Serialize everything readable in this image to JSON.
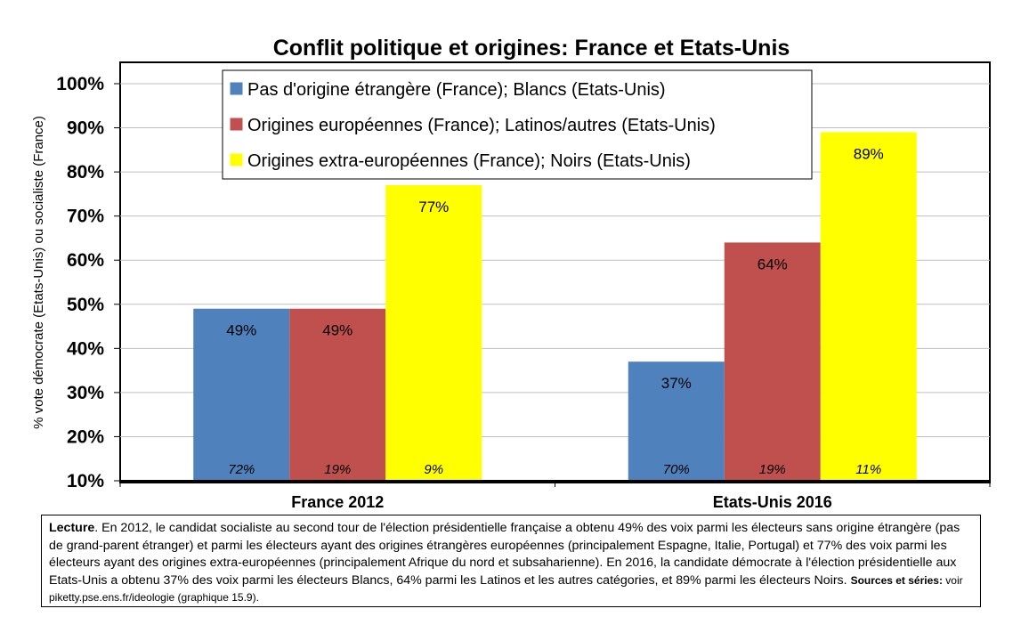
{
  "chart_data": {
    "type": "bar",
    "title": "Conflit politique et origines: France et Etats-Unis",
    "ylabel": "% vote démocrate (Etats-Unis) ou socialiste (France)",
    "xlabel": "",
    "ylim": [
      0.1,
      1.0
    ],
    "yticks": [
      "10%",
      "20%",
      "30%",
      "40%",
      "50%",
      "60%",
      "70%",
      "80%",
      "90%",
      "100%"
    ],
    "categories": [
      "France 2012",
      "Etats-Unis 2016"
    ],
    "series": [
      {
        "name": "Pas d'origine étrangère (France); Blancs (Etats-Unis)",
        "color": "#4f81bd",
        "values": [
          0.49,
          0.37
        ],
        "labels": [
          "49%",
          "37%"
        ],
        "shares": [
          "72%",
          "70%"
        ]
      },
      {
        "name": "Origines européennes (France); Latinos/autres (Etats-Unis)",
        "color": "#c0504d",
        "values": [
          0.49,
          0.64
        ],
        "labels": [
          "49%",
          "64%"
        ],
        "shares": [
          "19%",
          "19%"
        ]
      },
      {
        "name": "Origines extra-européennes (France); Noirs (Etats-Unis)",
        "color": "#ffff00",
        "values": [
          0.77,
          0.89
        ],
        "labels": [
          "77%",
          "89%"
        ],
        "shares": [
          "9%",
          "11%"
        ]
      }
    ],
    "grid": true,
    "legend_position": "top"
  },
  "note": {
    "label": "Lecture",
    "text": ". En 2012, le candidat socialiste au second tour de l'élection présidentielle française a obtenu 49% des voix parmi les électeurs sans origine étrangère (pas de grand-parent étranger) et parmi les électeurs ayant des origines étrangères européennes (principalement Espagne, Italie, Portugal) et 77% des voix parmi les électeurs ayant des origines extra-européennes (principalement Afrique du nord et subsaharienne). En 2016, la candidate démocrate à l'élection présidentielle aux Etats-Unis a obtenu 37% des voix parmi les électeurs Blancs, 64% parmi les Latinos et les autres catégories, et 89% parmi les électeurs Noirs.",
    "sources_label": "Sources et séries:",
    "sources_text": " voir piketty.pse.ens.fr/ideologie (graphique 15.9)."
  }
}
